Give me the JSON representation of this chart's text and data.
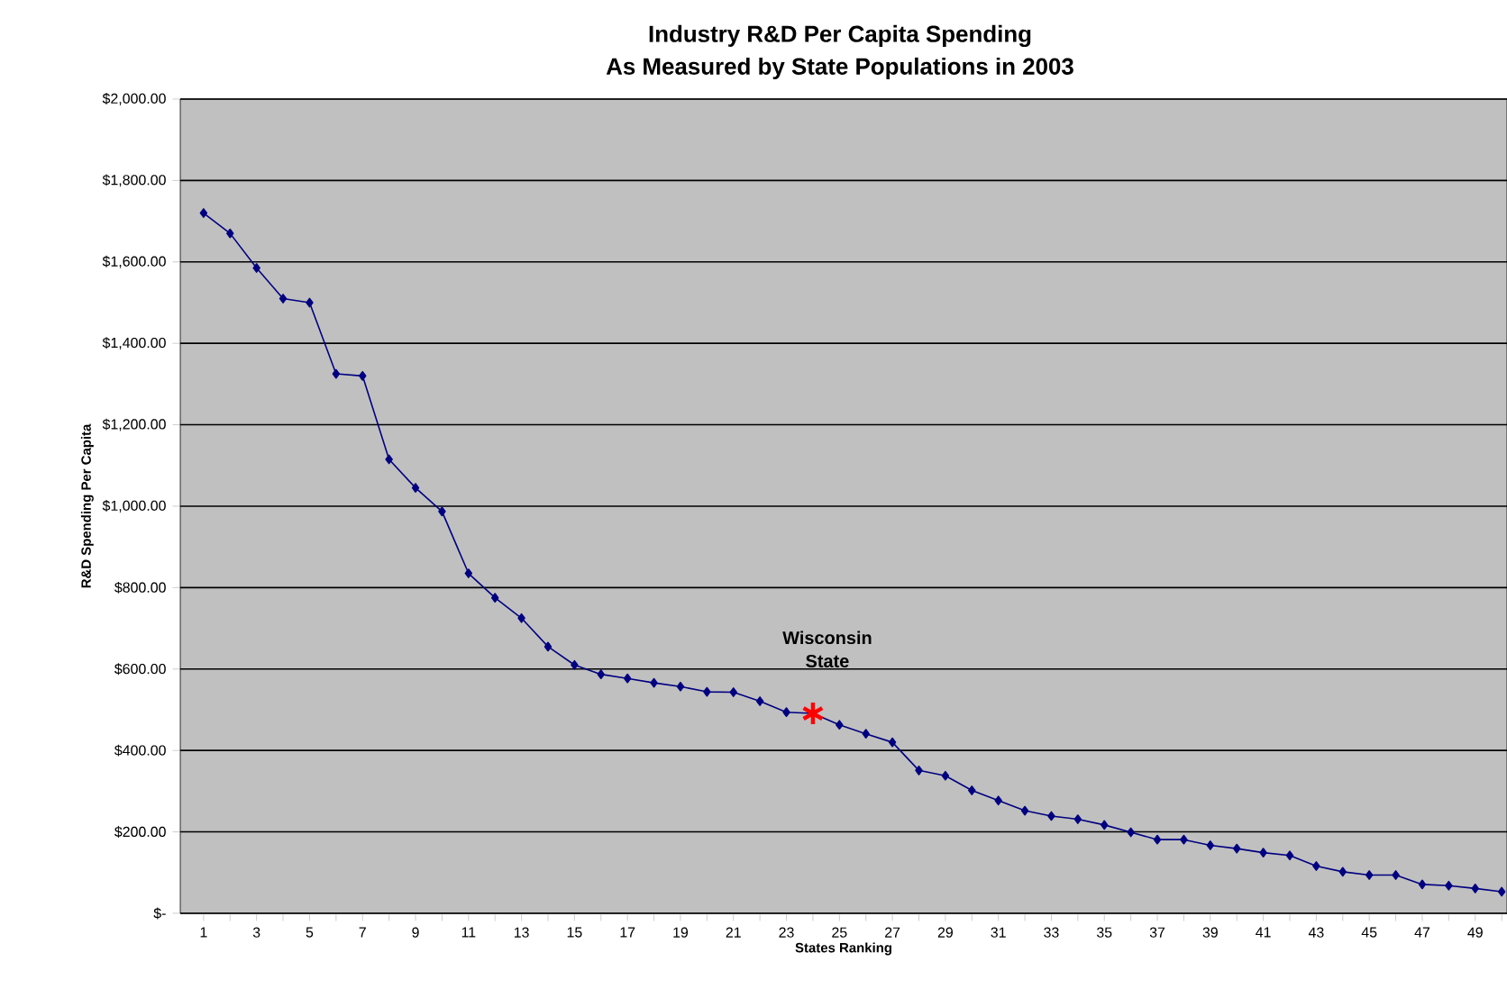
{
  "chart_data": {
    "type": "line",
    "title": "Industry R&D Per Capita Spending",
    "subtitle": "As Measured by State Populations in 2003",
    "xlabel": "States Ranking",
    "ylabel": "R&D Spending Per Capita",
    "categories": [
      "1",
      null,
      "3",
      null,
      "5",
      null,
      "7",
      null,
      "9",
      null,
      "11",
      null,
      "13",
      null,
      "15",
      null,
      "17",
      null,
      "19",
      null,
      "21",
      null,
      "23",
      null,
      "25",
      null,
      "27",
      null,
      "29",
      null,
      "31",
      null,
      "33",
      null,
      "35",
      null,
      "37",
      null,
      "39",
      null,
      "41",
      null,
      "43",
      null,
      "45",
      null,
      "47",
      null,
      "49",
      null
    ],
    "series": [
      {
        "color": "#000080",
        "marker": "diamond",
        "line_style": "solid",
        "values": [
          1720,
          1670,
          1585,
          1510,
          1500,
          1325,
          1320,
          1115,
          1045,
          987,
          835,
          775,
          725,
          655,
          610,
          587,
          577,
          566,
          557,
          544,
          543,
          521,
          494,
          491,
          463,
          441,
          420,
          351,
          338,
          302,
          277,
          252,
          239,
          231,
          217,
          199,
          181,
          181,
          167,
          159,
          149,
          142,
          116,
          102,
          94,
          94,
          71,
          68,
          61,
          53
        ]
      },
      {
        "type": "scatter",
        "color": "#ff0000",
        "marker": "cross",
        "values": [
          null,
          null,
          null,
          null,
          null,
          null,
          null,
          null,
          null,
          null,
          null,
          null,
          null,
          null,
          null,
          null,
          null,
          null,
          null,
          null,
          null,
          null,
          null,
          491,
          null,
          null,
          null,
          null,
          null,
          null,
          null,
          null,
          null,
          null,
          null,
          null,
          null,
          null,
          null,
          null,
          null,
          null,
          null,
          null,
          null,
          null,
          null,
          null,
          null,
          null
        ]
      }
    ],
    "annotations": [
      "Wisconsin State"
    ],
    "ylim": [
      0,
      2000
    ],
    "yticks": [
      {
        "value": 0,
        "label": "$-"
      },
      {
        "value": 200,
        "label": "$200.00"
      },
      {
        "value": 400,
        "label": "$400.00"
      },
      {
        "value": 600,
        "label": "$600.00"
      },
      {
        "value": 800,
        "label": "$800.00"
      },
      {
        "value": 1000,
        "label": "$1,000.00"
      },
      {
        "value": 1200,
        "label": "$1,200.00"
      },
      {
        "value": 1400,
        "label": "$1,400.00"
      },
      {
        "value": 1600,
        "label": "$1,600.00"
      },
      {
        "value": 1800,
        "label": "$1,800.00"
      },
      {
        "value": 2000,
        "label": "$2,000.00"
      }
    ],
    "grid": "y"
  }
}
